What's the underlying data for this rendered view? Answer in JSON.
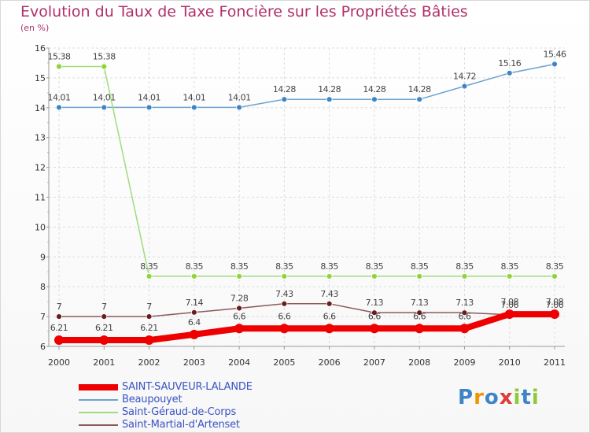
{
  "header": {
    "title": "Evolution du Taux de Taxe Foncière sur les Propriétés Bâties",
    "unit": "(en %)"
  },
  "chart_data": {
    "type": "line",
    "x": [
      "2000",
      "2001",
      "2002",
      "2003",
      "2004",
      "2005",
      "2006",
      "2007",
      "2008",
      "2009",
      "2010",
      "2011"
    ],
    "ylim": [
      6,
      16
    ],
    "yticks": [
      6,
      7,
      8,
      9,
      10,
      11,
      12,
      13,
      14,
      15,
      16
    ],
    "grid": true,
    "series": [
      {
        "name": "Beaupouyet",
        "color": "#6fa1cf",
        "marker": "#3f85c5",
        "values": [
          14.01,
          14.01,
          14.01,
          14.01,
          14.01,
          14.28,
          14.28,
          14.28,
          14.28,
          14.72,
          15.16,
          15.46
        ],
        "labels": [
          "14.01",
          "14.01",
          "14.01",
          "14.01",
          "14.01",
          "14.28",
          "14.28",
          "14.28",
          "14.28",
          "14.72",
          "15.16",
          "15.46"
        ]
      },
      {
        "name": "Saint-Géraud-de-Corps",
        "color": "#9fdc7d",
        "marker": "#8fd53a",
        "values": [
          15.38,
          15.38,
          8.35,
          8.35,
          8.35,
          8.35,
          8.35,
          8.35,
          8.35,
          8.35,
          8.35,
          8.35
        ],
        "labels": [
          "15.38",
          "15.38",
          "8.35",
          "8.35",
          "8.35",
          "8.35",
          "8.35",
          "8.35",
          "8.35",
          "8.35",
          "8.35",
          "8.35"
        ]
      },
      {
        "name": "Saint-Martial-d'Artenset",
        "color": "#8a5a5a",
        "marker": "#6b1d1d",
        "values": [
          7,
          7,
          7,
          7.14,
          7.28,
          7.43,
          7.43,
          7.13,
          7.13,
          7.13,
          7.06,
          7.06
        ],
        "labels": [
          "7",
          "7",
          "7",
          "7.14",
          "7.28",
          "7.43",
          "7.43",
          "7.13",
          "7.13",
          "7.13",
          "7.06",
          "7.06"
        ]
      },
      {
        "name": "SAINT-SAUVEUR-LALANDE",
        "color": "#ee0000",
        "marker": "#ee0000",
        "thick": true,
        "values": [
          6.21,
          6.21,
          6.21,
          6.4,
          6.6,
          6.6,
          6.6,
          6.6,
          6.6,
          6.6,
          7.08,
          7.08
        ],
        "labels": [
          "6.21",
          "6.21",
          "6.21",
          "6.4",
          "6.6",
          "6.6",
          "6.6",
          "6.6",
          "6.6",
          "6.6",
          "7.08",
          "7.08"
        ]
      }
    ]
  },
  "legend": [
    {
      "label": "SAINT-SAUVEUR-LALANDE",
      "color": "#ee0000",
      "thick": true
    },
    {
      "label": "Beaupouyet",
      "color": "#6fa1cf"
    },
    {
      "label": "Saint-Géraud-de-Corps",
      "color": "#9fdc7d"
    },
    {
      "label": "Saint-Martial-d'Artenset",
      "color": "#8a5a5a"
    }
  ],
  "logo": {
    "text": "Proxiti",
    "colors": [
      "#3f85c5",
      "#f29400",
      "#3f85c5",
      "#e03a3a",
      "#8fc93a",
      "#3f85c5",
      "#8fc93a"
    ]
  }
}
